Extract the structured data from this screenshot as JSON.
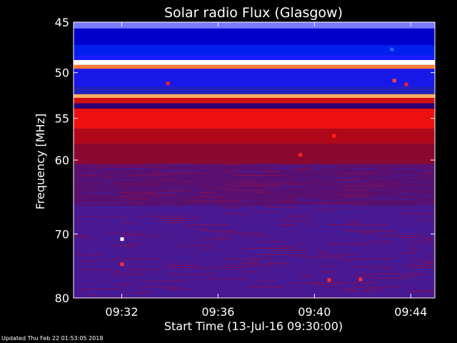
{
  "footer": {
    "updated": "Updated Thu Feb 22 01:53:05 2018"
  },
  "chart_data": {
    "type": "heatmap",
    "title": "Solar radio Flux (Glasgow)",
    "xlabel": "Start Time (13-Jul-16 09:30:00)",
    "ylabel": "Frequency [MHz]",
    "x_unit": "minutes after 09:30:00",
    "xlim": [
      0,
      15
    ],
    "ylim": [
      45,
      80
    ],
    "yscale": "log",
    "x_ticks": [
      {
        "value": 2,
        "label": "09:32"
      },
      {
        "value": 6,
        "label": "09:36"
      },
      {
        "value": 10,
        "label": "09:40"
      },
      {
        "value": 14,
        "label": "09:44"
      }
    ],
    "y_ticks": [
      45,
      50,
      55,
      60,
      70,
      80
    ],
    "bands": [
      {
        "f0": 45.0,
        "f1": 45.6,
        "color": "#7a7aff"
      },
      {
        "f0": 45.6,
        "f1": 47.2,
        "color": "#0000cc"
      },
      {
        "f0": 47.2,
        "f1": 48.2,
        "color": "#0020ee"
      },
      {
        "f0": 48.2,
        "f1": 48.7,
        "color": "#1a1aff"
      },
      {
        "f0": 48.7,
        "f1": 49.2,
        "color": "#ffffff"
      },
      {
        "f0": 49.2,
        "f1": 49.6,
        "color": "#ff7a30"
      },
      {
        "f0": 49.6,
        "f1": 51.5,
        "color": "#1818e8"
      },
      {
        "f0": 51.5,
        "f1": 52.3,
        "color": "#2222c0"
      },
      {
        "f0": 52.3,
        "f1": 52.7,
        "color": "#ffb060"
      },
      {
        "f0": 52.7,
        "f1": 53.3,
        "color": "#d01010"
      },
      {
        "f0": 53.3,
        "f1": 53.9,
        "color": "#300070"
      },
      {
        "f0": 53.9,
        "f1": 56.2,
        "color": "#ee1010"
      },
      {
        "f0": 56.2,
        "f1": 58.0,
        "color": "#b00818"
      },
      {
        "f0": 58.0,
        "f1": 60.5,
        "color": "#8a0830"
      },
      {
        "f0": 60.5,
        "f1": 66.0,
        "color": "#5a1070"
      },
      {
        "f0": 66.0,
        "f1": 80.0,
        "color": "#4a1890"
      }
    ],
    "bursts": [
      {
        "t": 2.0,
        "f": 70.7,
        "color": "#ffffff"
      },
      {
        "t": 2.0,
        "f": 74.5,
        "color": "#ff3030"
      },
      {
        "t": 9.4,
        "f": 59.3,
        "color": "#ff2020"
      },
      {
        "t": 10.8,
        "f": 57.0,
        "color": "#ff2020"
      },
      {
        "t": 3.9,
        "f": 51.1,
        "color": "#ff2020"
      },
      {
        "t": 13.3,
        "f": 50.8,
        "color": "#ff4040"
      },
      {
        "t": 13.8,
        "f": 51.2,
        "color": "#ff2020"
      },
      {
        "t": 13.2,
        "f": 47.6,
        "color": "#3060ff"
      },
      {
        "t": 10.6,
        "f": 77.0,
        "color": "#ff3030"
      },
      {
        "t": 11.9,
        "f": 76.9,
        "color": "#ff3030"
      }
    ]
  }
}
